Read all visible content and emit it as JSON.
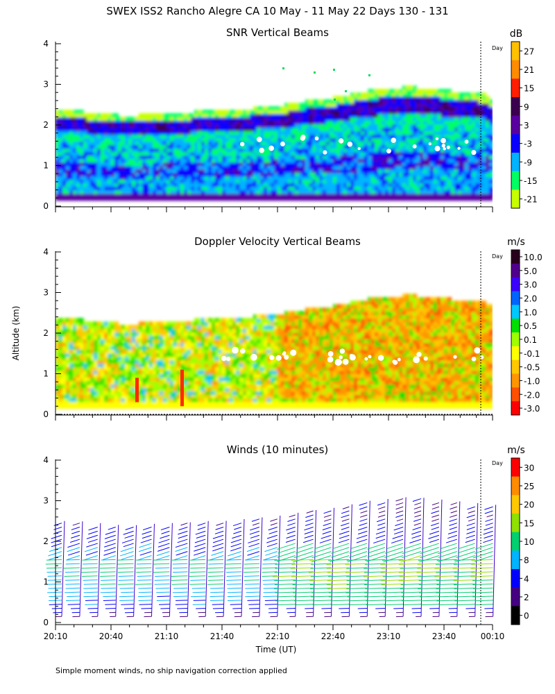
{
  "figure": {
    "title": "SWEX ISS2 Rancho Alegre CA  10 May - 11 May 22 Days 130 - 131",
    "ylabel": "Altitude (km)",
    "xlabel": "Time (UT)",
    "day_marker": "Day",
    "footnote": "Simple moment winds, no ship navigation correction applied"
  },
  "chart_data": [
    {
      "type": "heatmap",
      "title": "SNR Vertical Beams",
      "units": "dB",
      "ylim": [
        0,
        4
      ],
      "yticks": [
        "0",
        "1",
        "2",
        "3",
        "4"
      ],
      "colorbar_labels": [
        "27",
        "21",
        "15",
        "9",
        "3",
        "-3",
        "-9",
        "-15",
        "-21"
      ],
      "colorbar_colors": [
        "#ffc000",
        "#ff8c00",
        "#ff1e00",
        "#3c0050",
        "#5a00a0",
        "#0a00ff",
        "#00b4ff",
        "#00ff64",
        "#c8ff00"
      ],
      "top_of_data_km": [
        2.3,
        2.3,
        2.25,
        2.2,
        2.2,
        2.25,
        2.25,
        2.3,
        2.3,
        2.35,
        2.4,
        2.45,
        2.55,
        2.6,
        2.7,
        2.8,
        2.85,
        2.9,
        2.85,
        2.8,
        2.75,
        2.7
      ]
    },
    {
      "type": "heatmap",
      "title": "Doppler Velocity Vertical Beams",
      "units": "m/s",
      "ylim": [
        0,
        4
      ],
      "yticks": [
        "0",
        "1",
        "2",
        "3",
        "4"
      ],
      "colorbar_labels": [
        "10.0",
        "5.0",
        "3.0",
        "2.0",
        "1.0",
        "0.5",
        "0.1",
        "-0.1",
        "-0.5",
        "-1.0",
        "-2.0",
        "-3.0"
      ],
      "colorbar_colors": [
        "#28001e",
        "#50008c",
        "#3c00ff",
        "#0064ff",
        "#00c8ff",
        "#00e000",
        "#a0ff00",
        "#ffff00",
        "#ffc800",
        "#ff9600",
        "#ff5000",
        "#ff0000"
      ]
    },
    {
      "type": "scatter",
      "title": "Winds (10 minutes)",
      "units": "m/s",
      "ylim": [
        0,
        4
      ],
      "yticks": [
        "0",
        "1",
        "2",
        "3",
        "4"
      ],
      "x_tick_labels": [
        "20:10",
        "20:40",
        "21:10",
        "21:40",
        "22:10",
        "22:40",
        "23:10",
        "23:40",
        "00:10"
      ],
      "x_range_utc": [
        "20:10",
        "00:10"
      ],
      "profile_interval_min": 10,
      "colorbar_labels": [
        "30",
        "25",
        "20",
        "15",
        "10",
        "8",
        "4",
        "2",
        "0"
      ],
      "colorbar_colors": [
        "#ff0000",
        "#ff8c00",
        "#ffc800",
        "#90e000",
        "#00d070",
        "#00b4ff",
        "#0000ff",
        "#460082",
        "#000000"
      ],
      "speed_profile_ms": {
        "altitudes_km": [
          0.2,
          0.5,
          1.0,
          1.5,
          2.0,
          2.5,
          3.0
        ],
        "speed": [
          3,
          8,
          10,
          10,
          7,
          4,
          4
        ]
      }
    }
  ]
}
